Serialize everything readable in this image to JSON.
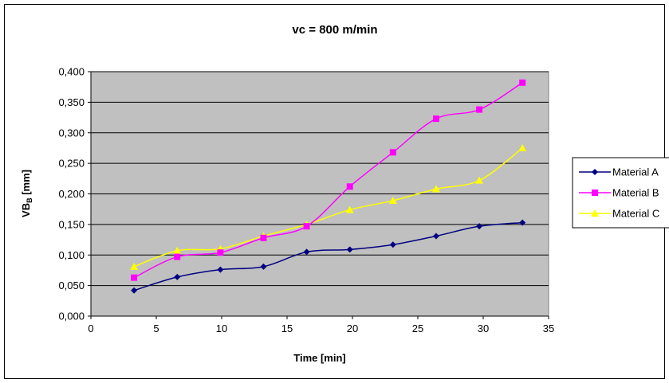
{
  "chart_data": {
    "type": "line",
    "title": "vc = 800 m/min",
    "xlabel": "Time [min]",
    "ylabel": {
      "main": "VB",
      "subscript": "B",
      "unit": " [mm]"
    },
    "xlim": [
      0,
      35
    ],
    "ylim": [
      0,
      0.4
    ],
    "x_ticks": [
      0,
      5,
      10,
      15,
      20,
      25,
      30,
      35
    ],
    "y_ticks": [
      "0,000",
      "0,050",
      "0,100",
      "0,150",
      "0,200",
      "0,250",
      "0,300",
      "0,350",
      "0,400"
    ],
    "y_tick_values": [
      0,
      0.05,
      0.1,
      0.15,
      0.2,
      0.25,
      0.3,
      0.35,
      0.4
    ],
    "grid": "horizontal",
    "plot_background": "#c0c0c0",
    "legend_position": "right",
    "x": [
      3.3,
      6.6,
      9.9,
      13.2,
      16.5,
      19.8,
      23.1,
      26.4,
      29.7,
      33.0
    ],
    "series": [
      {
        "name": "Material A",
        "color": "#000080",
        "marker": "diamond",
        "values": [
          0.042,
          0.064,
          0.076,
          0.081,
          0.105,
          0.109,
          0.117,
          0.131,
          0.147,
          0.153
        ]
      },
      {
        "name": "Material B",
        "color": "#ff00ff",
        "marker": "square",
        "values": [
          0.063,
          0.097,
          0.104,
          0.128,
          0.147,
          0.212,
          0.268,
          0.323,
          0.338,
          0.382
        ]
      },
      {
        "name": "Material C",
        "color": "#ffff00",
        "marker": "triangle",
        "values": [
          0.081,
          0.107,
          0.11,
          0.131,
          0.15,
          0.174,
          0.189,
          0.208,
          0.222,
          0.275
        ]
      }
    ]
  }
}
